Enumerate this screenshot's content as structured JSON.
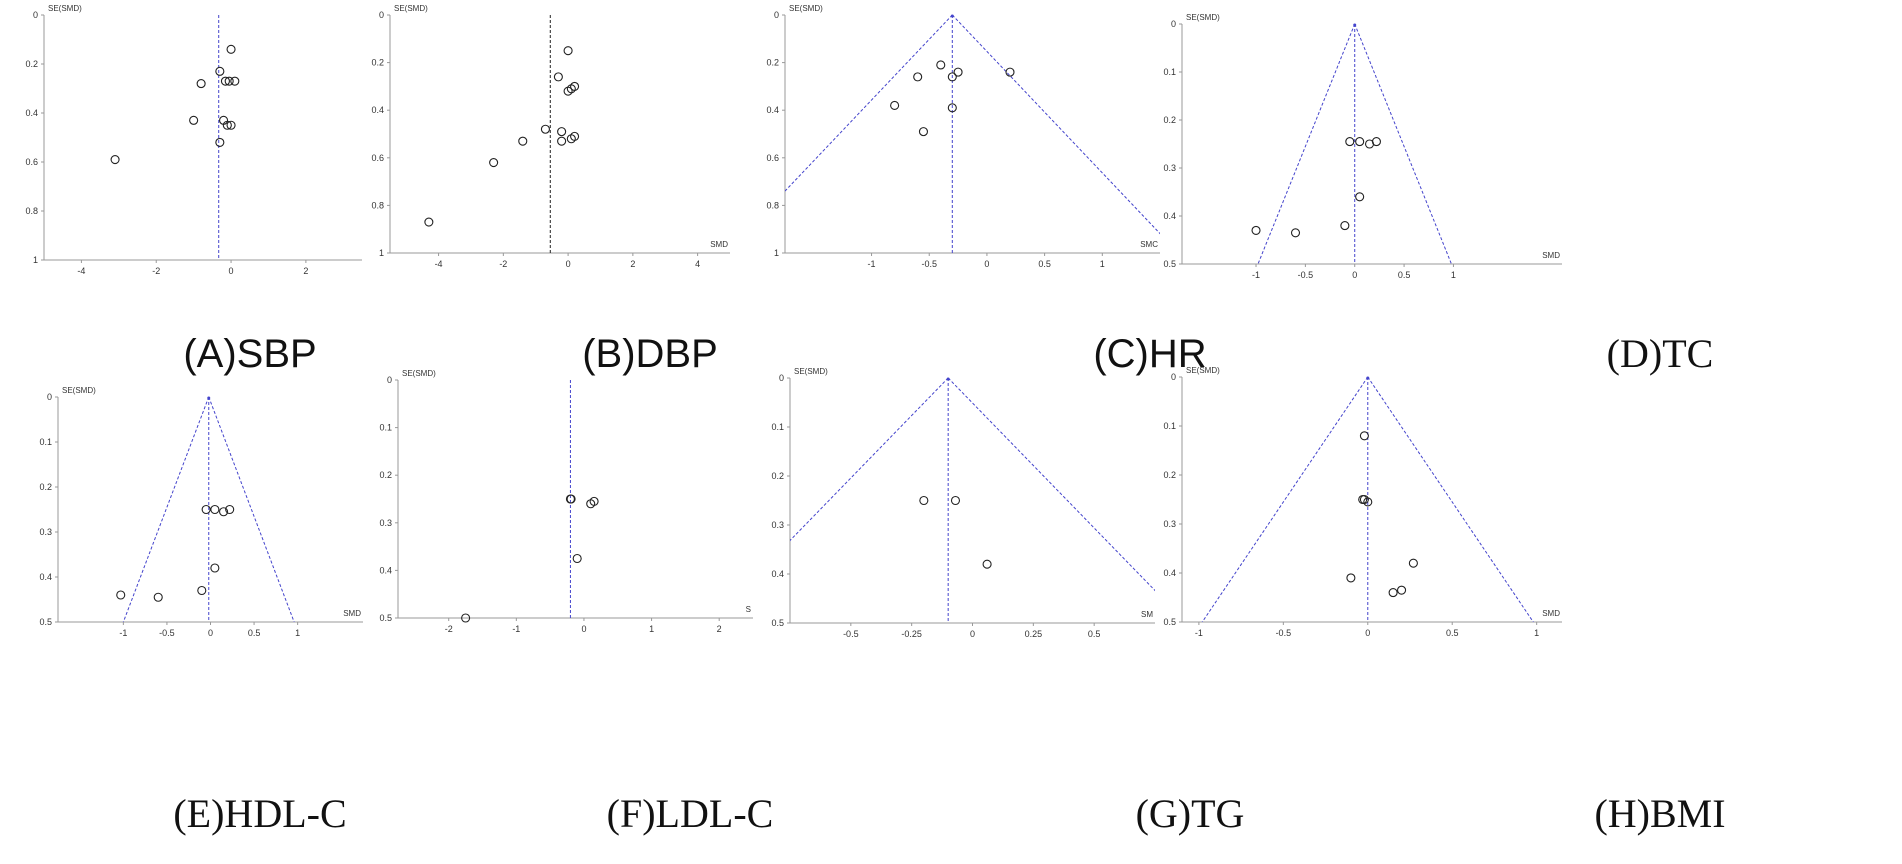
{
  "chart_data": [
    {
      "type": "scatter",
      "caption": "(A)SBP",
      "ylabel": "SE(SMD)",
      "xlabel": "",
      "xlim": [
        -5,
        3.5
      ],
      "ylim": [
        0,
        1
      ],
      "x_ticks": [
        -4,
        -2,
        0,
        2
      ],
      "x_tick_labels": [
        "-4",
        "-2",
        "0",
        "2"
      ],
      "y_ticks": [
        0,
        0.2,
        0.4,
        0.6,
        0.8,
        1
      ],
      "y_tick_labels": [
        "0",
        "0.2",
        "0.4",
        "0.6",
        "0.8",
        "1"
      ],
      "pooled_estimate": -0.33,
      "funnel": false,
      "reference_line_color": "#4444cc",
      "points": [
        [
          0.0,
          0.14
        ],
        [
          -0.3,
          0.23
        ],
        [
          -0.8,
          0.28
        ],
        [
          -0.15,
          0.27
        ],
        [
          -0.05,
          0.27
        ],
        [
          0.1,
          0.27
        ],
        [
          -1.0,
          0.43
        ],
        [
          -0.2,
          0.43
        ],
        [
          -0.1,
          0.45
        ],
        [
          0.0,
          0.45
        ],
        [
          -0.3,
          0.52
        ],
        [
          -3.1,
          0.59
        ]
      ]
    },
    {
      "type": "scatter",
      "caption": "(B)DBP",
      "ylabel": "SE(SMD)",
      "xlabel": "SMD",
      "xlim": [
        -5.5,
        5
      ],
      "ylim": [
        0,
        1
      ],
      "x_ticks": [
        -4,
        -2,
        0,
        2,
        4
      ],
      "x_tick_labels": [
        "-4",
        "-2",
        "0",
        "2",
        "4"
      ],
      "y_ticks": [
        0,
        0.2,
        0.4,
        0.6,
        0.8,
        1
      ],
      "y_tick_labels": [
        "0",
        "0.2",
        "0.4",
        "0.6",
        "0.8",
        "1"
      ],
      "pooled_estimate": -0.55,
      "funnel": false,
      "reference_line_color": "#222222",
      "points": [
        [
          0.0,
          0.15
        ],
        [
          -0.3,
          0.26
        ],
        [
          0.2,
          0.3
        ],
        [
          0.0,
          0.32
        ],
        [
          0.1,
          0.31
        ],
        [
          -0.7,
          0.48
        ],
        [
          -0.2,
          0.49
        ],
        [
          0.2,
          0.51
        ],
        [
          0.1,
          0.52
        ],
        [
          -0.2,
          0.53
        ],
        [
          -1.4,
          0.53
        ],
        [
          -2.3,
          0.62
        ],
        [
          -4.3,
          0.87
        ]
      ]
    },
    {
      "type": "scatter",
      "caption": "(C)HR",
      "ylabel": "SE(SMD)",
      "xlabel": "SMC",
      "xlim": [
        -1.75,
        1.5
      ],
      "ylim": [
        0,
        1
      ],
      "x_ticks": [
        -1,
        -0.5,
        0,
        0.5,
        1
      ],
      "x_tick_labels": [
        "-1",
        "-0.5",
        "0",
        "0.5",
        "1"
      ],
      "y_ticks": [
        0,
        0.2,
        0.4,
        0.6,
        0.8,
        1
      ],
      "y_tick_labels": [
        "0",
        "0.2",
        "0.4",
        "0.6",
        "0.8",
        "1"
      ],
      "pooled_estimate": -0.3,
      "funnel": true,
      "reference_line_color": "#4444cc",
      "points": [
        [
          -0.4,
          0.21
        ],
        [
          -0.6,
          0.26
        ],
        [
          -0.25,
          0.24
        ],
        [
          -0.3,
          0.26
        ],
        [
          0.2,
          0.24
        ],
        [
          -0.8,
          0.38
        ],
        [
          -0.3,
          0.39
        ],
        [
          -0.55,
          0.49
        ]
      ]
    },
    {
      "type": "scatter",
      "caption": "(D)TC",
      "ylabel": "SE(SMD)",
      "xlabel": "SMD",
      "xlim": [
        -1.75,
        2.1
      ],
      "ylim": [
        0,
        0.5
      ],
      "x_ticks": [
        -1,
        -0.5,
        0,
        0.5,
        1
      ],
      "x_tick_labels": [
        "-1",
        "-0.5",
        "0",
        "0.5",
        "1"
      ],
      "y_ticks": [
        0,
        0.1,
        0.2,
        0.3,
        0.4,
        0.5
      ],
      "y_tick_labels": [
        "0",
        "0.1",
        "0.2",
        "0.3",
        "0.4",
        "0.5"
      ],
      "pooled_estimate": 0.0,
      "funnel": true,
      "reference_line_color": "#4444cc",
      "points": [
        [
          -0.05,
          0.245
        ],
        [
          0.05,
          0.245
        ],
        [
          0.15,
          0.25
        ],
        [
          0.22,
          0.245
        ],
        [
          0.05,
          0.36
        ],
        [
          -1.0,
          0.43
        ],
        [
          -0.6,
          0.435
        ],
        [
          -0.1,
          0.42
        ]
      ]
    },
    {
      "type": "scatter",
      "caption": "(E)HDL-C",
      "ylabel": "SE(SMD)",
      "xlabel": "SMD",
      "xlim": [
        -1.75,
        1.75
      ],
      "ylim": [
        0,
        0.5
      ],
      "x_ticks": [
        -1,
        -0.5,
        0,
        0.5,
        1
      ],
      "x_tick_labels": [
        "-1",
        "-0.5",
        "0",
        "0.5",
        "1"
      ],
      "y_ticks": [
        0,
        0.1,
        0.2,
        0.3,
        0.4,
        0.5
      ],
      "y_tick_labels": [
        "0",
        "0.1",
        "0.2",
        "0.3",
        "0.4",
        "0.5"
      ],
      "pooled_estimate": -0.02,
      "funnel": true,
      "reference_line_color": "#4444cc",
      "points": [
        [
          -0.05,
          0.25
        ],
        [
          0.05,
          0.25
        ],
        [
          0.15,
          0.255
        ],
        [
          0.22,
          0.25
        ],
        [
          0.05,
          0.38
        ],
        [
          -1.03,
          0.44
        ],
        [
          -0.6,
          0.445
        ],
        [
          -0.1,
          0.43
        ]
      ]
    },
    {
      "type": "scatter",
      "caption": "(F)LDL-C",
      "ylabel": "SE(SMD)",
      "xlabel": "S",
      "xlim": [
        -2.75,
        2.5
      ],
      "ylim": [
        0,
        0.5
      ],
      "x_ticks": [
        -2,
        -1,
        0,
        1,
        2
      ],
      "x_tick_labels": [
        "-2",
        "-1",
        "0",
        "1",
        "2"
      ],
      "y_ticks": [
        0,
        0.1,
        0.2,
        0.3,
        0.4,
        0.5
      ],
      "y_tick_labels": [
        "0",
        "0.1",
        "0.2",
        "0.3",
        "0.4",
        "0.5"
      ],
      "pooled_estimate": -0.2,
      "funnel": false,
      "reference_line_color": "#4444cc",
      "points": [
        [
          -0.2,
          0.25
        ],
        [
          -0.19,
          0.25
        ],
        [
          0.1,
          0.26
        ],
        [
          0.15,
          0.255
        ],
        [
          -0.1,
          0.375
        ],
        [
          -1.75,
          0.5
        ]
      ]
    },
    {
      "type": "scatter",
      "caption": "(G)TG",
      "ylabel": "SE(SMD)",
      "xlabel": "SM",
      "xlim": [
        -0.75,
        0.75
      ],
      "ylim": [
        0,
        0.5
      ],
      "x_ticks": [
        -0.5,
        -0.25,
        0,
        0.25,
        0.5
      ],
      "x_tick_labels": [
        "-0.5",
        "-0.25",
        "0",
        "0.25",
        "0.5"
      ],
      "y_ticks": [
        0,
        0.1,
        0.2,
        0.3,
        0.4,
        0.5
      ],
      "y_tick_labels": [
        "0",
        "0.1",
        "0.2",
        "0.3",
        "0.4",
        "0.5"
      ],
      "pooled_estimate": -0.1,
      "funnel": true,
      "reference_line_color": "#4444cc",
      "points": [
        [
          -0.2,
          0.25
        ],
        [
          -0.07,
          0.25
        ],
        [
          0.06,
          0.38
        ]
      ]
    },
    {
      "type": "scatter",
      "caption": "(H)BMI",
      "ylabel": "SE(SMD)",
      "xlabel": "SMD",
      "xlim": [
        -1.1,
        1.15
      ],
      "ylim": [
        0,
        0.5
      ],
      "x_ticks": [
        -1,
        -0.5,
        0,
        0.5,
        1
      ],
      "x_tick_labels": [
        "-1",
        "-0.5",
        "0",
        "0.5",
        "1"
      ],
      "y_ticks": [
        0,
        0.1,
        0.2,
        0.3,
        0.4,
        0.5
      ],
      "y_tick_labels": [
        "0",
        "0.1",
        "0.2",
        "0.3",
        "0.4",
        "0.5"
      ],
      "pooled_estimate": 0.0,
      "funnel": true,
      "reference_line_color": "#4444cc",
      "points": [
        [
          -0.02,
          0.12
        ],
        [
          -0.03,
          0.25
        ],
        [
          -0.02,
          0.25
        ],
        [
          0.0,
          0.255
        ],
        [
          0.27,
          0.38
        ],
        [
          -0.1,
          0.41
        ],
        [
          0.2,
          0.435
        ],
        [
          0.15,
          0.44
        ]
      ]
    }
  ]
}
